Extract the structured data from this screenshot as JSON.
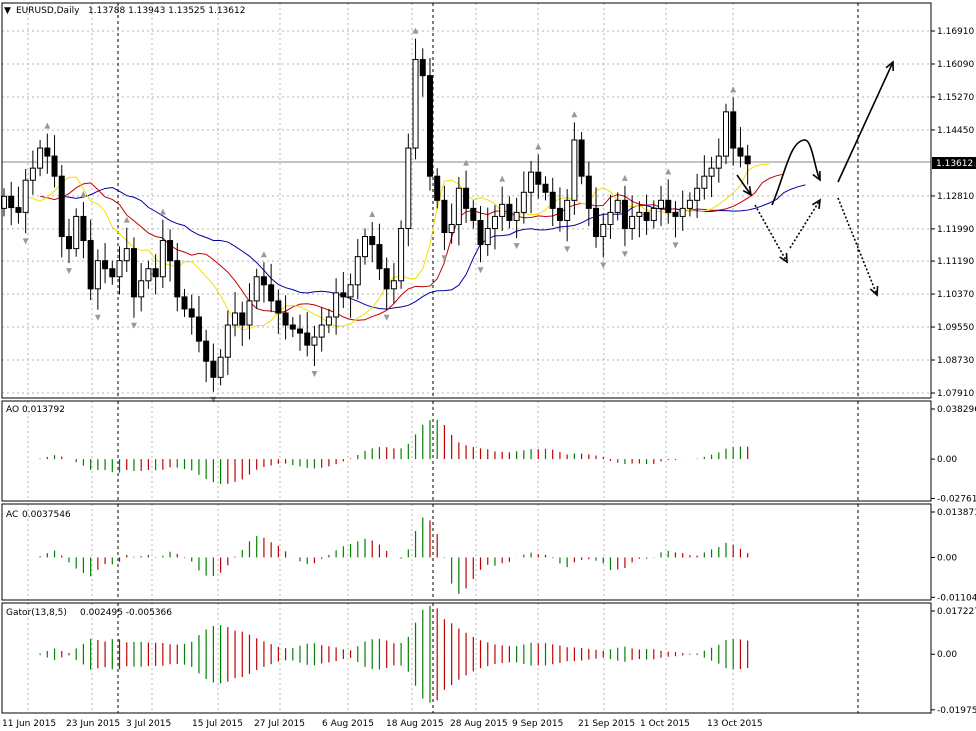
{
  "header": {
    "symbol": "EURUSD,Daily",
    "ohlc": "1.13788 1.13943 1.13525 1.13612"
  },
  "colors": {
    "background": "#ffffff",
    "candle": "#000000",
    "jaw": "#0000a0",
    "teeth": "#c00000",
    "lips": "#f0e000",
    "up_bar": "#008000",
    "down_bar": "#c00000",
    "grid": "#b4b4b4",
    "price_tag_bg": "#000000"
  },
  "chart_data": [
    {
      "type": "candlestick",
      "name": "EURUSD,Daily",
      "ylim": [
        1.0791,
        1.1691
      ],
      "y_ticks": [
        "1.16910",
        "1.16090",
        "1.15270",
        "1.14450",
        "1.12810",
        "1.11990",
        "1.11190",
        "1.10370",
        "1.09550",
        "1.08730",
        "1.07910"
      ],
      "current_price": "1.13612",
      "x_labels": [
        "11 Jun 2015",
        "23 Jun 2015",
        "3 Jul 2015",
        "15 Jul 2015",
        "27 Jul 2015",
        "6 Aug 2015",
        "18 Aug 2015",
        "28 Aug 2015",
        "9 Sep 2015",
        "21 Sep 2015",
        "1 Oct 2015",
        "13 Oct 2015"
      ],
      "closes": [
        1.128,
        1.1252,
        1.124,
        1.132,
        1.135,
        1.14,
        1.138,
        1.133,
        1.118,
        1.115,
        1.123,
        1.117,
        1.105,
        1.112,
        1.11,
        1.108,
        1.112,
        1.115,
        1.103,
        1.107,
        1.11,
        1.108,
        1.117,
        1.112,
        1.103,
        1.1,
        1.098,
        1.092,
        1.087,
        1.083,
        1.088,
        1.096,
        1.099,
        1.096,
        1.102,
        1.108,
        1.106,
        1.102,
        1.099,
        1.096,
        1.095,
        1.094,
        1.091,
        1.093,
        1.096,
        1.098,
        1.104,
        1.103,
        1.106,
        1.113,
        1.118,
        1.116,
        1.11,
        1.105,
        1.107,
        1.12,
        1.14,
        1.162,
        1.158,
        1.133,
        1.127,
        1.119,
        1.121,
        1.13,
        1.125,
        1.122,
        1.116,
        1.12,
        1.123,
        1.126,
        1.122,
        1.124,
        1.129,
        1.134,
        1.131,
        1.129,
        1.125,
        1.122,
        1.127,
        1.142,
        1.133,
        1.125,
        1.118,
        1.121,
        1.124,
        1.127,
        1.12,
        1.123,
        1.124,
        1.122,
        1.125,
        1.127,
        1.124,
        1.123,
        1.125,
        1.127,
        1.13,
        1.133,
        1.135,
        1.138,
        1.149,
        1.14,
        1.138,
        1.1361
      ],
      "series": [
        {
          "name": "Alligator Jaw"
        },
        {
          "name": "Alligator Teeth"
        },
        {
          "name": "Alligator Lips"
        }
      ],
      "annotations": [
        "forecast arrows: solid paths up, dotted paths down"
      ]
    },
    {
      "type": "histogram",
      "name": "AO",
      "value": "0.013792",
      "y_ticks": [
        "0.038296",
        "0.00",
        "-0.027615"
      ],
      "ylim": [
        -0.027615,
        0.038296
      ]
    },
    {
      "type": "histogram",
      "name": "AC",
      "value": "0.0037546",
      "y_ticks": [
        "0.013873",
        "0.00",
        "-0.011046"
      ],
      "ylim": [
        -0.011046,
        0.013873
      ]
    },
    {
      "type": "histogram",
      "name": "Gator(13,8,5)",
      "value": "0.002495 -0.005366",
      "y_ticks": [
        "0.017227",
        "0.00",
        "-0.019754"
      ],
      "ylim": [
        -0.019754,
        0.017227
      ]
    }
  ]
}
